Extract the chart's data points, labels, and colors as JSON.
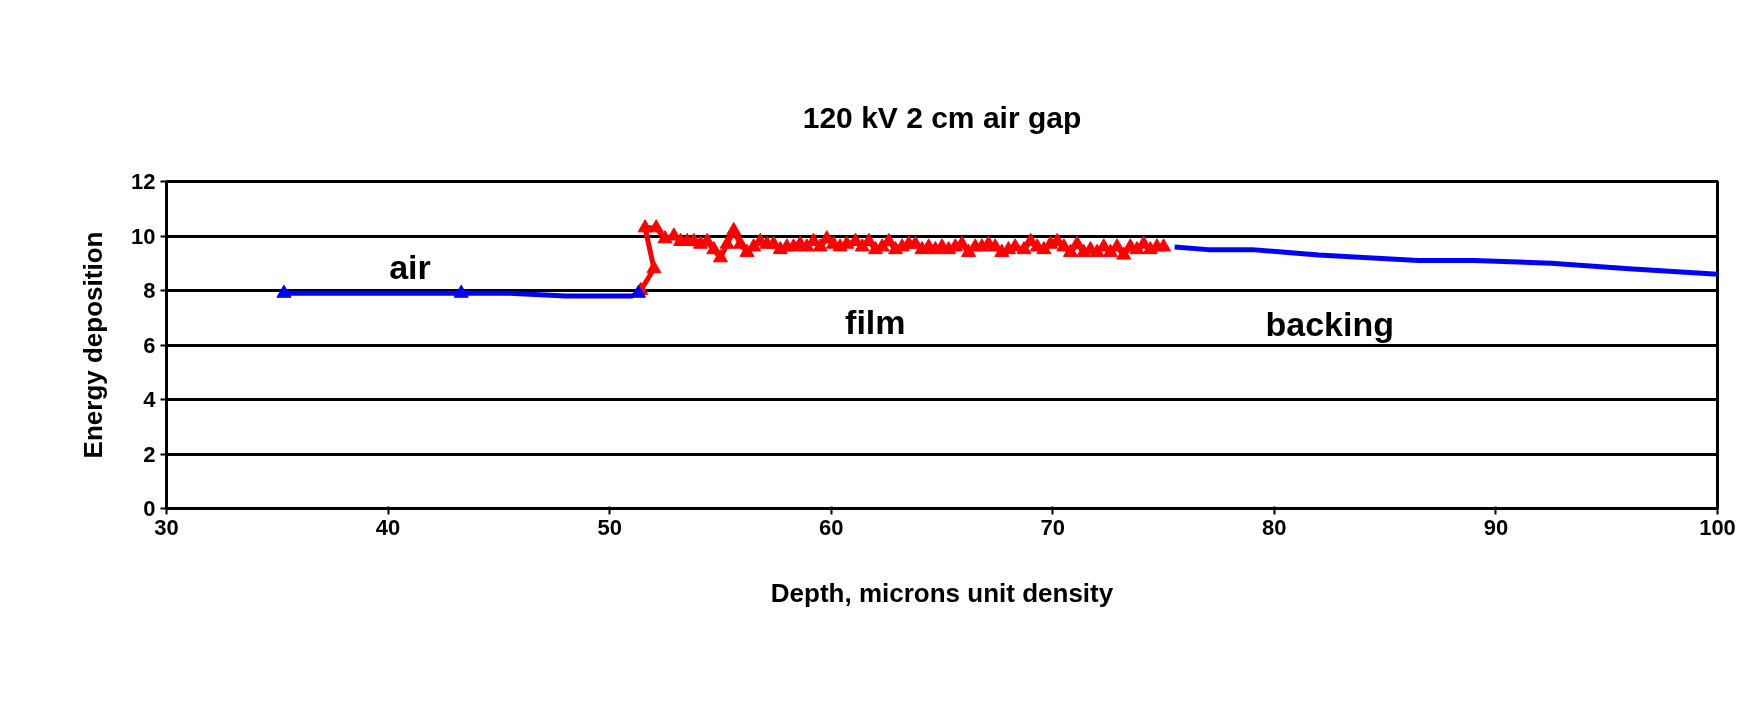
{
  "chart_data": {
    "type": "line",
    "title": "120 kV 2 cm air gap",
    "xlabel": "Depth, microns unit density",
    "ylabel": "Energy deposition",
    "xlim": [
      30,
      100
    ],
    "ylim": [
      0,
      12
    ],
    "xticks": [
      30,
      40,
      50,
      60,
      70,
      80,
      90,
      100
    ],
    "yticks": [
      0,
      2,
      4,
      6,
      8,
      10,
      12
    ],
    "grid": "y",
    "marker": "triangle",
    "line_style": "solid",
    "series": [
      {
        "color": "#0000ff",
        "x": [
          35.3,
          43.3,
          45.5,
          48.0,
          51.0,
          51.3
        ],
        "values": [
          7.9,
          7.9,
          7.9,
          7.8,
          7.8,
          7.9
        ],
        "marker": "none"
      },
      {
        "type": "scatter",
        "color": "#0000ff",
        "x": [
          35.3,
          43.3,
          51.3
        ],
        "values": [
          7.9,
          7.9,
          7.9
        ]
      },
      {
        "color": "#ff0000",
        "x": [
          51.4,
          52.0,
          51.6,
          52.1,
          52.5,
          52.9,
          53.2,
          53.5,
          53.8,
          54.1,
          54.4,
          54.7,
          55.0,
          55.3,
          55.6,
          55.9,
          56.2,
          56.5,
          56.8,
          57.1,
          57.4,
          57.7,
          58.0,
          58.3,
          58.6,
          58.9,
          59.2,
          59.5,
          59.8,
          60.1,
          60.4,
          60.7,
          61.1,
          61.4,
          61.7,
          62.0,
          62.3,
          62.6,
          62.9,
          63.2,
          63.5,
          63.8,
          64.1,
          64.4,
          64.7,
          65.0,
          65.3,
          65.6,
          65.9,
          66.2,
          66.5,
          66.8,
          67.1,
          67.4,
          67.7,
          68.0,
          68.3,
          68.7,
          69.0,
          69.3,
          69.6,
          69.9,
          70.2,
          70.5,
          70.8,
          71.1,
          71.4,
          71.7,
          72.0,
          72.3,
          72.6,
          72.9,
          73.2,
          73.5,
          73.8,
          74.1,
          74.4,
          74.7,
          75.0
        ],
        "values": [
          8.0,
          8.8,
          10.3,
          10.3,
          9.9,
          10.0,
          9.8,
          9.8,
          9.8,
          9.7,
          9.8,
          9.5,
          9.2,
          9.7,
          10.2,
          9.7,
          9.4,
          9.6,
          9.8,
          9.7,
          9.7,
          9.5,
          9.6,
          9.6,
          9.7,
          9.6,
          9.8,
          9.6,
          9.9,
          9.7,
          9.6,
          9.7,
          9.8,
          9.6,
          9.8,
          9.5,
          9.6,
          9.8,
          9.5,
          9.6,
          9.7,
          9.7,
          9.5,
          9.6,
          9.5,
          9.6,
          9.5,
          9.6,
          9.7,
          9.4,
          9.6,
          9.6,
          9.7,
          9.6,
          9.4,
          9.5,
          9.6,
          9.5,
          9.8,
          9.6,
          9.5,
          9.7,
          9.8,
          9.6,
          9.4,
          9.7,
          9.4,
          9.5,
          9.4,
          9.6,
          9.4,
          9.6,
          9.3,
          9.6,
          9.5,
          9.7,
          9.5,
          9.6,
          9.6
        ]
      },
      {
        "color": "#0000ff",
        "x": [
          75.5,
          77.0,
          79.0,
          82.0,
          86.5,
          89.0,
          92.5,
          96.0,
          100.0
        ],
        "values": [
          9.6,
          9.5,
          9.5,
          9.3,
          9.1,
          9.1,
          9.0,
          8.8,
          8.6
        ],
        "marker": "none"
      }
    ],
    "annotations": [
      "air",
      "film",
      "backing"
    ]
  }
}
